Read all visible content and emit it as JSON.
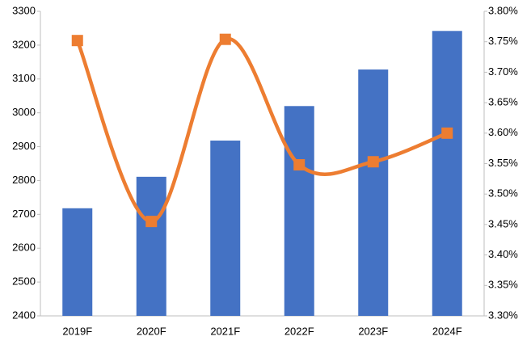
{
  "chart_data": {
    "type": "bar",
    "categories": [
      "2019F",
      "2020F",
      "2021F",
      "2022F",
      "2023F",
      "2024F"
    ],
    "series": [
      {
        "type": "bar",
        "color": "#4472c4",
        "values": [
          2718,
          2811,
          2918,
          3020,
          3128,
          3242
        ]
      },
      {
        "type": "line",
        "axis": "y2",
        "smooth": true,
        "color": "#ed7d31",
        "values": [
          3.752,
          3.455,
          3.754,
          3.548,
          3.553,
          3.6
        ]
      }
    ],
    "ylim": [
      2400,
      3300
    ],
    "yticks": [
      2400,
      2500,
      2600,
      2700,
      2800,
      2900,
      3000,
      3100,
      3200,
      3300
    ],
    "y2lim": [
      3.3,
      3.8
    ],
    "y2ticks": [
      {
        "value": 3.3,
        "label": "3.30%"
      },
      {
        "value": 3.35,
        "label": "3.35%"
      },
      {
        "value": 3.4,
        "label": "3.40%"
      },
      {
        "value": 3.45,
        "label": "3.45%"
      },
      {
        "value": 3.5,
        "label": "3.50%"
      },
      {
        "value": 3.55,
        "label": "3.55%"
      },
      {
        "value": 3.6,
        "label": "3.60%"
      },
      {
        "value": 3.65,
        "label": "3.65%"
      },
      {
        "value": 3.7,
        "label": "3.70%"
      },
      {
        "value": 3.75,
        "label": "3.75%"
      },
      {
        "value": 3.8,
        "label": "3.80%"
      }
    ],
    "grid": false
  }
}
